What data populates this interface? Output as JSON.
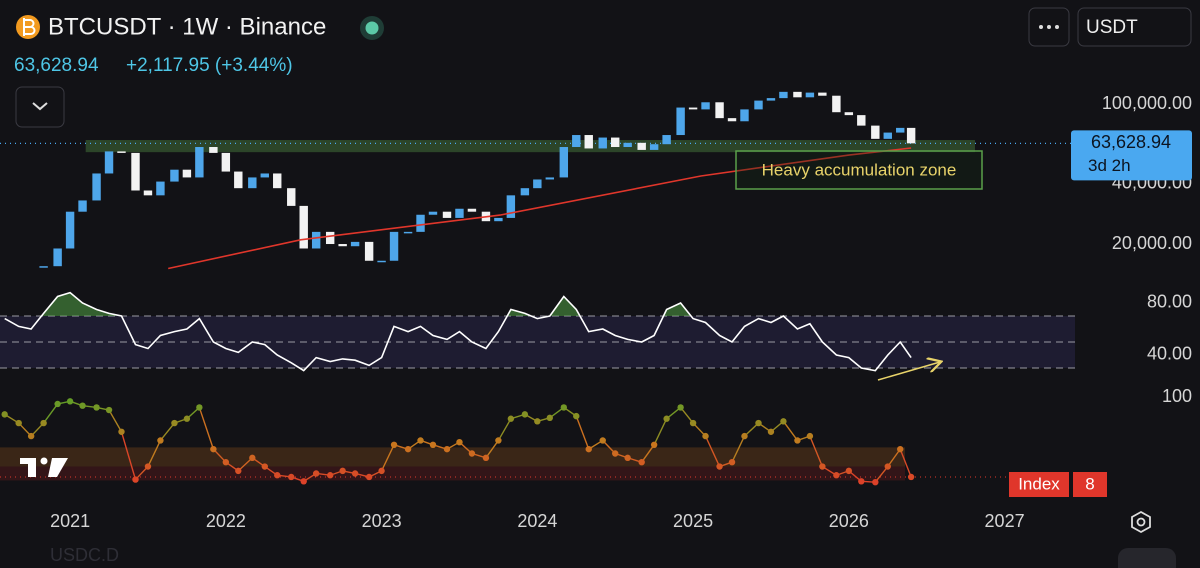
{
  "header": {
    "symbol": "BTCUSDT · 1W · Binance",
    "price": "63,628.94",
    "change": "+2,117.95 (+3.44%)",
    "currency": "USDT",
    "watermark": "USDC.D"
  },
  "chart_data": [
    {
      "type": "candlestick",
      "log_scale": true,
      "grid": false,
      "up_color": "#4ea6ea",
      "down_color": "#f2f2f2",
      "xlim": [
        2020.55,
        2027.42
      ],
      "ylim": [
        11790,
        208700
      ],
      "yticks": [
        {
          "value": 20000,
          "label": "20,000.00"
        },
        {
          "value": 40000,
          "label": "40,000.00"
        },
        {
          "value": 100000,
          "label": "100,000.00"
        }
      ],
      "x": [
        2020.83,
        2020.92,
        2021.0,
        2021.08,
        2021.17,
        2021.25,
        2021.33,
        2021.42,
        2021.5,
        2021.58,
        2021.67,
        2021.75,
        2021.83,
        2021.92,
        2022.0,
        2022.08,
        2022.17,
        2022.25,
        2022.33,
        2022.42,
        2022.5,
        2022.58,
        2022.67,
        2022.75,
        2022.83,
        2022.92,
        2023.0,
        2023.08,
        2023.17,
        2023.25,
        2023.33,
        2023.42,
        2023.5,
        2023.58,
        2023.67,
        2023.75,
        2023.83,
        2023.92,
        2024.0,
        2024.08,
        2024.17,
        2024.25,
        2024.33,
        2024.42,
        2024.5,
        2024.58,
        2024.67,
        2024.75,
        2024.83,
        2024.92,
        2025.0,
        2025.08,
        2025.17,
        2025.25,
        2025.33,
        2025.42,
        2025.5,
        2025.58,
        2025.67,
        2025.75,
        2025.83,
        2025.92,
        2026.0,
        2026.08,
        2026.17,
        2026.25,
        2026.33,
        2026.4
      ],
      "values": [
        15500,
        19000,
        29000,
        33000,
        45000,
        58000,
        57000,
        37000,
        35000,
        41000,
        47000,
        43000,
        61000,
        57000,
        46000,
        38000,
        43000,
        45000,
        38000,
        31000,
        19000,
        23000,
        20000,
        19500,
        20500,
        16500,
        16500,
        23000,
        23000,
        28000,
        29000,
        27000,
        30000,
        29000,
        26000,
        27000,
        35000,
        38000,
        42000,
        43000,
        61000,
        70000,
        60000,
        68000,
        61000,
        64000,
        59000,
        63000,
        70000,
        96000,
        94000,
        102000,
        85000,
        82000,
        94000,
        104000,
        107000,
        115000,
        108000,
        114000,
        110000,
        91000,
        88000,
        78000,
        67000,
        72000,
        76000,
        63628.94
      ],
      "moving_average": {
        "color": "#e0362b",
        "x": [
          2021.63,
          2022.48,
          2023.76,
          2025.05,
          2026.0,
          2026.4
        ],
        "values": [
          15100,
          21000,
          27900,
          43700,
          55600,
          60300
        ]
      },
      "zone": {
        "xlim": [
          2021.1,
          2026.81
        ],
        "ylim": [
          57500,
          66100
        ],
        "color": "rgba(70,120,60,0.5)",
        "label": "Heavy accumulation zone"
      },
      "last_price": {
        "value": 63628.94,
        "label": "63,628.94"
      },
      "countdown": "3d 2h"
    },
    {
      "type": "line",
      "color": "#ffffff",
      "grid": false,
      "xlim": [
        2020.55,
        2027.42
      ],
      "ylim": [
        9.2,
        90
      ],
      "yticks": [
        {
          "value": 40,
          "label": "40.00"
        },
        {
          "value": 80,
          "label": "80.00"
        }
      ],
      "levels": [
        30,
        50,
        70
      ],
      "band": [
        30,
        70
      ],
      "x": [
        2020.58,
        2020.67,
        2020.75,
        2020.83,
        2020.92,
        2021.0,
        2021.08,
        2021.17,
        2021.25,
        2021.33,
        2021.42,
        2021.5,
        2021.58,
        2021.67,
        2021.75,
        2021.83,
        2021.92,
        2022.0,
        2022.08,
        2022.17,
        2022.25,
        2022.33,
        2022.42,
        2022.5,
        2022.58,
        2022.67,
        2022.75,
        2022.83,
        2022.92,
        2023.0,
        2023.08,
        2023.17,
        2023.25,
        2023.33,
        2023.42,
        2023.5,
        2023.58,
        2023.67,
        2023.75,
        2023.83,
        2023.92,
        2024.0,
        2024.08,
        2024.17,
        2024.25,
        2024.33,
        2024.42,
        2024.5,
        2024.58,
        2024.67,
        2024.75,
        2024.83,
        2024.92,
        2025.0,
        2025.08,
        2025.17,
        2025.25,
        2025.33,
        2025.42,
        2025.5,
        2025.58,
        2025.67,
        2025.75,
        2025.83,
        2025.92,
        2026.0,
        2026.08,
        2026.17,
        2026.25,
        2026.33,
        2026.4
      ],
      "values": [
        68,
        62,
        60,
        72,
        85,
        88,
        80,
        75,
        72,
        70,
        48,
        45,
        55,
        58,
        60,
        68,
        50,
        45,
        42,
        50,
        48,
        40,
        34,
        28,
        38,
        35,
        37,
        36,
        32,
        38,
        62,
        58,
        62,
        55,
        52,
        58,
        50,
        45,
        58,
        75,
        72,
        68,
        70,
        85,
        75,
        58,
        60,
        55,
        52,
        50,
        55,
        75,
        80,
        68,
        65,
        55,
        50,
        62,
        68,
        65,
        70,
        60,
        64,
        50,
        40,
        38,
        30,
        28,
        40,
        50,
        38
      ]
    },
    {
      "type": "scatter",
      "label": "Index",
      "grid": false,
      "colors": [
        "#e0362b",
        "#c8781e",
        "#5aa028"
      ],
      "bands": [
        {
          "range": [
            20,
            42
          ],
          "color": "rgba(160,90,30,0.28)"
        },
        {
          "range": [
            4,
            20
          ],
          "color": "rgba(150,30,30,0.25)"
        }
      ],
      "xlim": [
        2020.55,
        2027.42
      ],
      "ylim": [
        -7,
        100
      ],
      "xticks": [
        2021,
        2022,
        2023,
        2024,
        2025,
        2026,
        2027
      ],
      "yticks": [
        100
      ],
      "x": [
        2020.58,
        2020.67,
        2020.75,
        2020.83,
        2020.92,
        2021.0,
        2021.08,
        2021.17,
        2021.25,
        2021.33,
        2021.42,
        2021.5,
        2021.58,
        2021.67,
        2021.75,
        2021.83,
        2021.92,
        2022.0,
        2022.08,
        2022.17,
        2022.25,
        2022.33,
        2022.42,
        2022.5,
        2022.58,
        2022.67,
        2022.75,
        2022.83,
        2022.92,
        2023.0,
        2023.08,
        2023.17,
        2023.25,
        2023.33,
        2023.42,
        2023.5,
        2023.58,
        2023.67,
        2023.75,
        2023.83,
        2023.92,
        2024.0,
        2024.08,
        2024.17,
        2024.25,
        2024.33,
        2024.42,
        2024.5,
        2024.58,
        2024.67,
        2024.75,
        2024.83,
        2024.92,
        2025.0,
        2025.08,
        2025.17,
        2025.25,
        2025.33,
        2025.42,
        2025.5,
        2025.58,
        2025.67,
        2025.75,
        2025.83,
        2025.92,
        2026.0,
        2026.08,
        2026.17,
        2026.25,
        2026.33,
        2026.4
      ],
      "values": [
        80,
        70,
        55,
        70,
        92,
        95,
        90,
        88,
        85,
        60,
        5,
        20,
        50,
        70,
        75,
        88,
        40,
        25,
        15,
        30,
        20,
        10,
        8,
        3,
        12,
        10,
        15,
        12,
        8,
        15,
        45,
        40,
        50,
        45,
        40,
        48,
        35,
        30,
        50,
        75,
        80,
        72,
        76,
        88,
        78,
        40,
        50,
        35,
        30,
        25,
        45,
        75,
        88,
        70,
        55,
        20,
        25,
        55,
        70,
        60,
        72,
        50,
        55,
        20,
        10,
        15,
        3,
        2,
        20,
        40,
        8
      ]
    }
  ]
}
